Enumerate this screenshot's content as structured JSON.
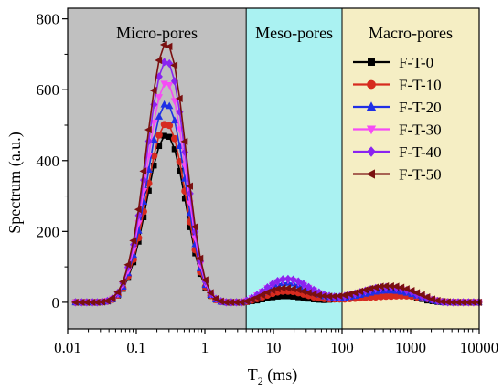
{
  "chart_data": {
    "type": "line",
    "x_scale": "log",
    "xlabel_main": "T",
    "xlabel_sub": "2",
    "xlabel_unit": " (ms)",
    "ylabel": "Spectrum (a.u.)",
    "xlim": [
      0.01,
      10000
    ],
    "ylim": [
      -75,
      830
    ],
    "x_ticks": [
      0.01,
      0.1,
      1,
      10,
      100,
      1000,
      10000
    ],
    "x_tick_labels": [
      "0.01",
      "0.1",
      "1",
      "10",
      "100",
      "1000",
      "10000"
    ],
    "y_ticks": [
      0,
      200,
      400,
      600,
      800
    ],
    "y_tick_labels": [
      "0",
      "200",
      "400",
      "600",
      "800"
    ],
    "legend_position": "right",
    "regions": [
      {
        "label": "Micro-pores",
        "x_from": 0.01,
        "x_to": 4,
        "color": "#c0c0c0"
      },
      {
        "label": "Meso-pores",
        "x_from": 4,
        "x_to": 100,
        "color": "#aaf2f2"
      },
      {
        "label": "Macro-pores",
        "x_from": 100,
        "x_to": 10000,
        "color": "#f5eec4"
      }
    ],
    "x": [
      0.013,
      0.016,
      0.019,
      0.023,
      0.027,
      0.032,
      0.038,
      0.045,
      0.054,
      0.064,
      0.076,
      0.091,
      0.108,
      0.128,
      0.152,
      0.181,
      0.215,
      0.256,
      0.304,
      0.362,
      0.43,
      0.511,
      0.608,
      0.723,
      0.86,
      1.02,
      1.22,
      1.45,
      1.72,
      2.05,
      2.43,
      2.89,
      3.44,
      4.09,
      4.86,
      5.78,
      6.87,
      8.17,
      9.71,
      11.5,
      13.7,
      16.3,
      19.4,
      23.1,
      27.4,
      32.6,
      38.8,
      46.1,
      54.8,
      65.2,
      77.5,
      92.1,
      109.5,
      130.2,
      154.8,
      184,
      218.8,
      260.2,
      309.4,
      367.8,
      437.4,
      520.1,
      618.3,
      735.2,
      874.2,
      1039,
      1236,
      1470,
      1747,
      2078,
      2470,
      2937,
      3492,
      4153,
      4938,
      5871,
      6981,
      8301,
      9870
    ],
    "series": [
      {
        "name": "F-T-0",
        "color": "#000000",
        "marker": "square",
        "values": [
          0,
          0,
          0,
          0,
          0,
          1,
          3,
          8,
          19,
          38,
          69,
          113,
          171,
          240,
          315,
          386,
          441,
          470,
          467,
          432,
          371,
          293,
          212,
          138,
          80,
          41,
          18,
          7,
          2,
          0,
          0,
          0,
          0,
          1,
          3,
          5,
          8,
          11,
          14,
          16,
          17,
          17,
          16,
          14,
          12,
          10,
          8,
          7,
          6,
          7,
          8,
          10,
          13,
          16,
          20,
          24,
          28,
          31,
          34,
          35,
          35,
          34,
          31,
          27,
          23,
          18,
          13,
          9,
          5,
          3,
          1,
          0,
          0,
          0,
          0,
          0,
          0,
          0,
          0
        ]
      },
      {
        "name": "F-T-10",
        "color": "#d62b1f",
        "marker": "circle",
        "values": [
          0,
          0,
          0,
          0,
          0,
          1,
          3,
          8,
          20,
          40,
          74,
          121,
          182,
          256,
          336,
          413,
          472,
          502,
          499,
          462,
          397,
          314,
          227,
          148,
          86,
          44,
          19,
          7,
          2,
          0,
          0,
          0,
          0,
          2,
          6,
          10,
          15,
          20,
          25,
          29,
          31,
          31,
          30,
          27,
          23,
          19,
          15,
          12,
          10,
          9,
          9,
          9,
          9,
          10,
          11,
          12,
          13,
          14,
          15,
          16,
          17,
          17,
          18,
          18,
          18,
          17,
          15,
          13,
          10,
          7,
          4,
          2,
          1,
          0,
          0,
          0,
          0,
          0,
          0
        ]
      },
      {
        "name": "F-T-20",
        "color": "#1f2fe6",
        "marker": "triangle-up",
        "values": [
          0,
          0,
          0,
          0,
          0,
          1,
          3,
          9,
          22,
          44,
          82,
          134,
          202,
          284,
          374,
          459,
          524,
          558,
          554,
          513,
          441,
          349,
          252,
          164,
          96,
          49,
          21,
          8,
          2,
          0,
          0,
          0,
          0,
          4,
          10,
          17,
          26,
          35,
          43,
          50,
          54,
          55,
          53,
          48,
          42,
          35,
          28,
          22,
          17,
          14,
          12,
          12,
          13,
          15,
          18,
          21,
          24,
          27,
          30,
          32,
          33,
          33,
          32,
          30,
          27,
          23,
          19,
          14,
          10,
          6,
          3,
          1,
          0,
          0,
          0,
          0,
          0,
          0,
          0
        ]
      },
      {
        "name": "F-T-30",
        "color": "#f54bf5",
        "marker": "triangle-down",
        "values": [
          0,
          0,
          0,
          0,
          0,
          1,
          4,
          10,
          24,
          49,
          90,
          148,
          223,
          314,
          413,
          507,
          579,
          617,
          613,
          568,
          488,
          385,
          279,
          181,
          106,
          54,
          23,
          9,
          3,
          0,
          0,
          0,
          0,
          5,
          12,
          20,
          30,
          40,
          49,
          57,
          62,
          63,
          61,
          56,
          49,
          41,
          33,
          26,
          20,
          16,
          14,
          14,
          16,
          19,
          23,
          27,
          31,
          35,
          38,
          40,
          41,
          41,
          40,
          37,
          33,
          28,
          22,
          16,
          11,
          7,
          3,
          1,
          0,
          0,
          0,
          0,
          0,
          0,
          0
        ]
      },
      {
        "name": "F-T-40",
        "color": "#8a24f0",
        "marker": "diamond",
        "values": [
          0,
          0,
          0,
          0,
          0,
          1,
          4,
          11,
          27,
          54,
          99,
          163,
          245,
          345,
          455,
          558,
          637,
          678,
          674,
          624,
          537,
          424,
          307,
          199,
          116,
          59,
          25,
          10,
          3,
          0,
          0,
          0,
          0,
          5,
          12,
          21,
          31,
          42,
          52,
          60,
          65,
          66,
          64,
          59,
          52,
          43,
          35,
          28,
          22,
          18,
          16,
          16,
          18,
          21,
          25,
          29,
          33,
          37,
          40,
          42,
          43,
          43,
          41,
          38,
          34,
          29,
          23,
          17,
          12,
          7,
          4,
          1,
          0,
          0,
          0,
          0,
          0,
          0,
          0
        ]
      },
      {
        "name": "F-T-50",
        "color": "#7a1010",
        "marker": "triangle-left",
        "values": [
          0,
          0,
          0,
          0,
          0,
          1,
          4,
          12,
          29,
          58,
          106,
          174,
          262,
          370,
          487,
          598,
          683,
          727,
          722,
          669,
          575,
          454,
          328,
          213,
          124,
          63,
          27,
          10,
          3,
          0,
          0,
          0,
          0,
          3,
          8,
          14,
          21,
          28,
          34,
          38,
          40,
          40,
          38,
          35,
          31,
          27,
          23,
          20,
          18,
          17,
          17,
          18,
          20,
          23,
          27,
          31,
          35,
          39,
          42,
          45,
          46,
          46,
          45,
          42,
          38,
          33,
          27,
          21,
          15,
          9,
          5,
          2,
          1,
          0,
          0,
          0,
          0,
          0,
          0
        ]
      }
    ]
  }
}
